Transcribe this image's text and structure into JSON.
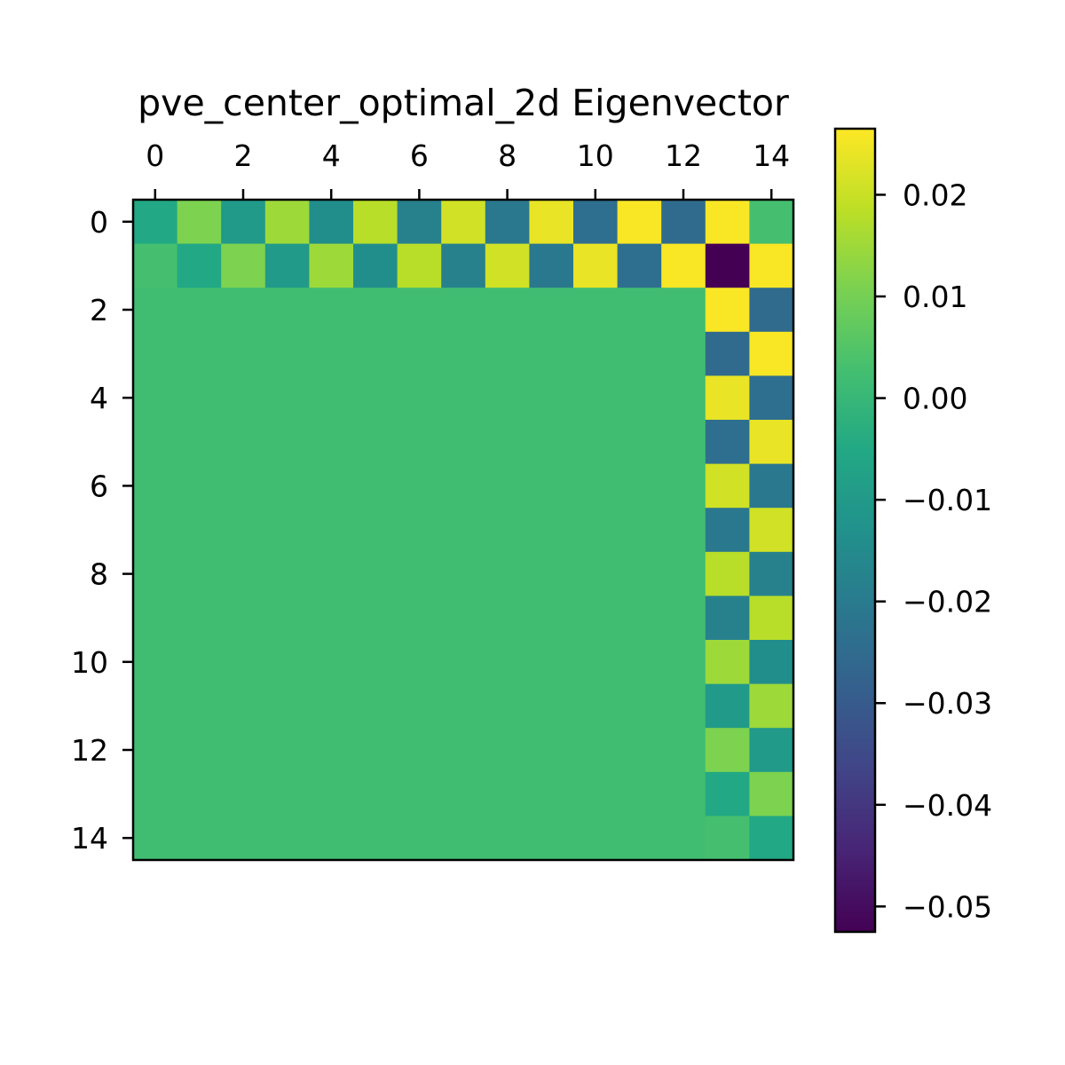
{
  "chart_data": {
    "type": "heatmap",
    "title": "pve_center_optimal_2d Eigenvector",
    "xlabel": "",
    "ylabel": "",
    "rows": 15,
    "cols": 15,
    "x_ticks": [
      0,
      2,
      4,
      6,
      8,
      10,
      12,
      14
    ],
    "y_ticks": [
      0,
      2,
      4,
      6,
      8,
      10,
      12,
      14
    ],
    "x_tick_position": "top",
    "colormap": "viridis",
    "color_range": [
      -0.0525,
      0.0265
    ],
    "colorbar_ticks": [
      0.02,
      0.01,
      0.0,
      -0.01,
      -0.02,
      -0.03,
      -0.04,
      -0.05
    ],
    "colorbar_tick_labels": [
      "0.02",
      "0.01",
      "0.00",
      "−0.01",
      "−0.02",
      "−0.03",
      "−0.04",
      "−0.05"
    ],
    "values": [
      [
        -0.005,
        0.011,
        -0.01,
        0.015,
        -0.014,
        0.018,
        -0.018,
        0.021,
        -0.021,
        0.024,
        -0.024,
        0.026,
        -0.025,
        0.026,
        0.003
      ],
      [
        0.003,
        -0.005,
        0.011,
        -0.01,
        0.015,
        -0.014,
        0.018,
        -0.018,
        0.021,
        -0.021,
        0.024,
        -0.024,
        0.026,
        -0.0525,
        0.026
      ],
      [
        0.002,
        0.002,
        0.002,
        0.002,
        0.002,
        0.002,
        0.002,
        0.002,
        0.002,
        0.002,
        0.002,
        0.002,
        0.002,
        0.026,
        -0.025
      ],
      [
        0.002,
        0.002,
        0.002,
        0.002,
        0.002,
        0.002,
        0.002,
        0.002,
        0.002,
        0.002,
        0.002,
        0.002,
        0.002,
        -0.025,
        0.026
      ],
      [
        0.002,
        0.002,
        0.002,
        0.002,
        0.002,
        0.002,
        0.002,
        0.002,
        0.002,
        0.002,
        0.002,
        0.002,
        0.002,
        0.024,
        -0.024
      ],
      [
        0.002,
        0.002,
        0.002,
        0.002,
        0.002,
        0.002,
        0.002,
        0.002,
        0.002,
        0.002,
        0.002,
        0.002,
        0.002,
        -0.024,
        0.024
      ],
      [
        0.002,
        0.002,
        0.002,
        0.002,
        0.002,
        0.002,
        0.002,
        0.002,
        0.002,
        0.002,
        0.002,
        0.002,
        0.002,
        0.021,
        -0.021
      ],
      [
        0.002,
        0.002,
        0.002,
        0.002,
        0.002,
        0.002,
        0.002,
        0.002,
        0.002,
        0.002,
        0.002,
        0.002,
        0.002,
        -0.021,
        0.021
      ],
      [
        0.002,
        0.002,
        0.002,
        0.002,
        0.002,
        0.002,
        0.002,
        0.002,
        0.002,
        0.002,
        0.002,
        0.002,
        0.002,
        0.018,
        -0.018
      ],
      [
        0.002,
        0.002,
        0.002,
        0.002,
        0.002,
        0.002,
        0.002,
        0.002,
        0.002,
        0.002,
        0.002,
        0.002,
        0.002,
        -0.018,
        0.018
      ],
      [
        0.002,
        0.002,
        0.002,
        0.002,
        0.002,
        0.002,
        0.002,
        0.002,
        0.002,
        0.002,
        0.002,
        0.002,
        0.002,
        0.015,
        -0.014
      ],
      [
        0.002,
        0.002,
        0.002,
        0.002,
        0.002,
        0.002,
        0.002,
        0.002,
        0.002,
        0.002,
        0.002,
        0.002,
        0.002,
        -0.01,
        0.015
      ],
      [
        0.002,
        0.002,
        0.002,
        0.002,
        0.002,
        0.002,
        0.002,
        0.002,
        0.002,
        0.002,
        0.002,
        0.002,
        0.002,
        0.011,
        -0.01
      ],
      [
        0.002,
        0.002,
        0.002,
        0.002,
        0.002,
        0.002,
        0.002,
        0.002,
        0.002,
        0.002,
        0.002,
        0.002,
        0.002,
        -0.005,
        0.011
      ],
      [
        0.002,
        0.002,
        0.002,
        0.002,
        0.002,
        0.002,
        0.002,
        0.002,
        0.002,
        0.002,
        0.002,
        0.002,
        0.002,
        0.003,
        -0.005
      ]
    ]
  }
}
